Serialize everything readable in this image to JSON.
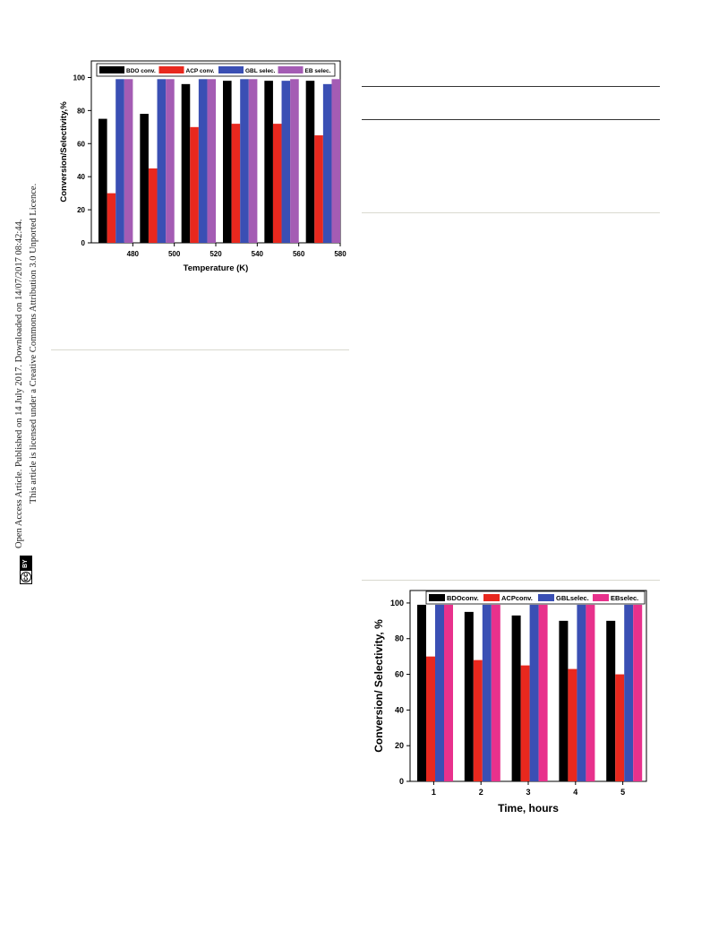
{
  "sidebar": {
    "line1": "Open Access Article. Published on 14 July 2017. Downloaded on 14/07/2017 08:42:44.",
    "line2": "This article is licensed under a Creative Commons Attribution 3.0 Unported Licence.",
    "cc_badge": "cc",
    "by_badge": "BY"
  },
  "chart_data": [
    {
      "type": "bar",
      "title": "",
      "xlabel": "Temperature (K)",
      "ylabel": "Conversion/Selectivity,%",
      "ylim": [
        0,
        110
      ],
      "yticks": [
        0,
        20,
        40,
        60,
        80,
        100
      ],
      "xticks": [
        "480",
        "500",
        "520",
        "540",
        "560",
        "580"
      ],
      "categories": [
        "470",
        "490",
        "510",
        "530",
        "550",
        "570"
      ],
      "legend_placement": "top",
      "series": [
        {
          "name": "BDO conv.",
          "color": "#000000",
          "values": [
            75,
            78,
            96,
            98,
            98,
            98
          ]
        },
        {
          "name": "ACP conv.",
          "color": "#e8281e",
          "values": [
            30,
            45,
            70,
            72,
            72,
            65
          ]
        },
        {
          "name": "GBL selec.",
          "color": "#3a4fb4",
          "values": [
            99,
            99,
            99,
            99,
            98,
            96
          ]
        },
        {
          "name": "EB selec.",
          "color": "#a45cb4",
          "values": [
            99,
            99,
            99,
            99,
            99,
            99
          ]
        }
      ]
    },
    {
      "type": "bar",
      "title": "",
      "xlabel": "Time, hours",
      "ylabel": "Conversion/ Selectivity, %",
      "ylim": [
        0,
        107
      ],
      "yticks": [
        0,
        20,
        40,
        60,
        80,
        100
      ],
      "categories": [
        "1",
        "2",
        "3",
        "4",
        "5"
      ],
      "legend_placement": "top",
      "series": [
        {
          "name": "BDOconv.",
          "color": "#000000",
          "values": [
            99,
            95,
            93,
            90,
            90
          ]
        },
        {
          "name": "ACPconv.",
          "color": "#e8281e",
          "values": [
            70,
            68,
            65,
            63,
            60
          ]
        },
        {
          "name": "GBLselec.",
          "color": "#3a4fb4",
          "values": [
            99,
            99,
            99,
            99,
            99
          ]
        },
        {
          "name": "EBselec.",
          "color": "#e8318c",
          "values": [
            99,
            99,
            99,
            99,
            99
          ]
        }
      ]
    }
  ]
}
